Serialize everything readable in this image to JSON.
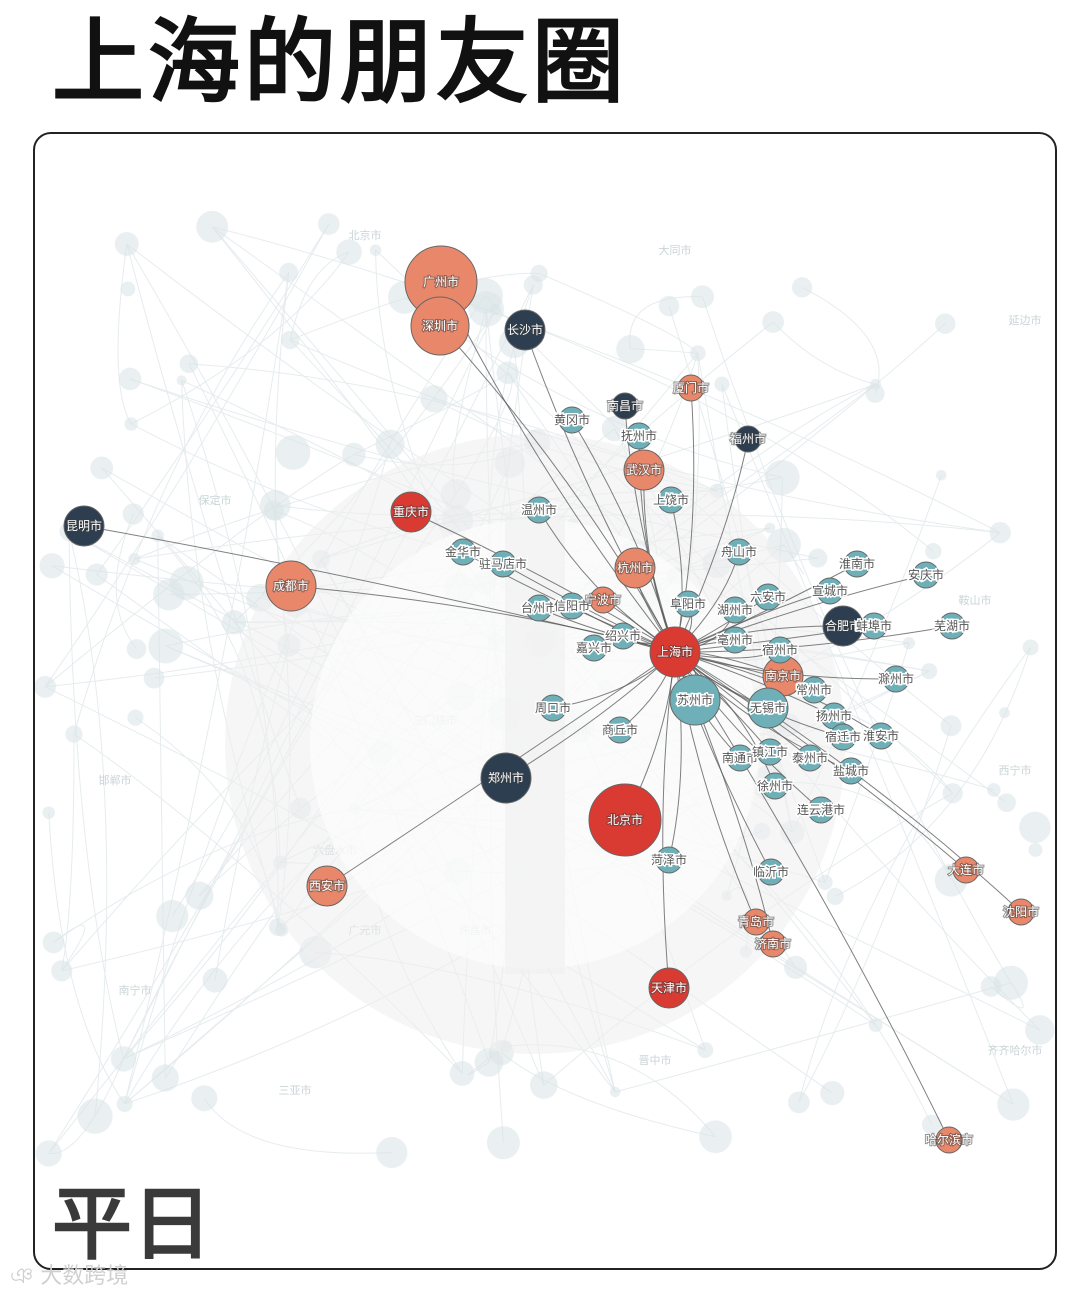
{
  "title": "上海的朋友圈",
  "corner_label": "平日",
  "watermark": "大数跨境",
  "colors": {
    "large": "#e9876a",
    "red": "#d93a32",
    "navy": "#2c3e50",
    "teal": "#6fb0b8",
    "background_node": "#d8e4e6",
    "edge": "#555555",
    "background_edge": "#e6ecee"
  },
  "hub": "上海市",
  "nodes": [
    {
      "name": "上海市",
      "type": "red",
      "size": 3
    },
    {
      "name": "北京市",
      "type": "red",
      "size": 5
    },
    {
      "name": "广州市",
      "type": "large",
      "size": 5
    },
    {
      "name": "深圳市",
      "type": "large",
      "size": 4
    },
    {
      "name": "长沙市",
      "type": "navy",
      "size": 2
    },
    {
      "name": "厦门市",
      "type": "large",
      "size": 1
    },
    {
      "name": "南昌市",
      "type": "navy",
      "size": 1
    },
    {
      "name": "黄冈市",
      "type": "teal",
      "size": 1
    },
    {
      "name": "抚州市",
      "type": "teal",
      "size": 1
    },
    {
      "name": "福州市",
      "type": "navy",
      "size": 1
    },
    {
      "name": "武汉市",
      "type": "large",
      "size": 2
    },
    {
      "name": "上饶市",
      "type": "teal",
      "size": 1
    },
    {
      "name": "昆明市",
      "type": "navy",
      "size": 2
    },
    {
      "name": "重庆市",
      "type": "red",
      "size": 2
    },
    {
      "name": "温州市",
      "type": "teal",
      "size": 1
    },
    {
      "name": "成都市",
      "type": "large",
      "size": 3
    },
    {
      "name": "金华市",
      "type": "teal",
      "size": 1
    },
    {
      "name": "驻马店市",
      "type": "teal",
      "size": 1
    },
    {
      "name": "杭州市",
      "type": "large",
      "size": 2
    },
    {
      "name": "舟山市",
      "type": "teal",
      "size": 1
    },
    {
      "name": "淮南市",
      "type": "teal",
      "size": 1
    },
    {
      "name": "安庆市",
      "type": "teal",
      "size": 1
    },
    {
      "name": "台州市",
      "type": "teal",
      "size": 1
    },
    {
      "name": "信阳市",
      "type": "teal",
      "size": 1
    },
    {
      "name": "宁波市",
      "type": "large",
      "size": 1
    },
    {
      "name": "阜阳市",
      "type": "teal",
      "size": 1
    },
    {
      "name": "六安市",
      "type": "teal",
      "size": 1
    },
    {
      "name": "宣城市",
      "type": "teal",
      "size": 1
    },
    {
      "name": "绍兴市",
      "type": "teal",
      "size": 1
    },
    {
      "name": "湖州市",
      "type": "teal",
      "size": 1
    },
    {
      "name": "合肥市",
      "type": "navy",
      "size": 2
    },
    {
      "name": "蚌埠市",
      "type": "teal",
      "size": 1
    },
    {
      "name": "芜湖市",
      "type": "teal",
      "size": 1
    },
    {
      "name": "嘉兴市",
      "type": "teal",
      "size": 1
    },
    {
      "name": "亳州市",
      "type": "teal",
      "size": 1
    },
    {
      "name": "宿州市",
      "type": "teal",
      "size": 1
    },
    {
      "name": "南京市",
      "type": "large",
      "size": 2
    },
    {
      "name": "常州市",
      "type": "teal",
      "size": 1
    },
    {
      "name": "滁州市",
      "type": "teal",
      "size": 1
    },
    {
      "name": "苏州市",
      "type": "teal",
      "size": 3
    },
    {
      "name": "无锡市",
      "type": "teal",
      "size": 2
    },
    {
      "name": "周口市",
      "type": "teal",
      "size": 1
    },
    {
      "name": "扬州市",
      "type": "teal",
      "size": 1
    },
    {
      "name": "商丘市",
      "type": "teal",
      "size": 1
    },
    {
      "name": "宿迁市",
      "type": "teal",
      "size": 1
    },
    {
      "name": "淮安市",
      "type": "teal",
      "size": 1
    },
    {
      "name": "南通市",
      "type": "teal",
      "size": 1
    },
    {
      "name": "镇江市",
      "type": "teal",
      "size": 1
    },
    {
      "name": "泰州市",
      "type": "teal",
      "size": 1
    },
    {
      "name": "郑州市",
      "type": "navy",
      "size": 3
    },
    {
      "name": "盐城市",
      "type": "teal",
      "size": 1
    },
    {
      "name": "徐州市",
      "type": "teal",
      "size": 1
    },
    {
      "name": "连云港市",
      "type": "teal",
      "size": 1
    },
    {
      "name": "菏泽市",
      "type": "teal",
      "size": 1
    },
    {
      "name": "临沂市",
      "type": "teal",
      "size": 1
    },
    {
      "name": "大连市",
      "type": "large",
      "size": 1
    },
    {
      "name": "西安市",
      "type": "large",
      "size": 2
    },
    {
      "name": "沈阳市",
      "type": "large",
      "size": 1
    },
    {
      "name": "青岛市",
      "type": "large",
      "size": 1
    },
    {
      "name": "济南市",
      "type": "large",
      "size": 1
    },
    {
      "name": "天津市",
      "type": "red",
      "size": 2
    },
    {
      "name": "哈尔滨市",
      "type": "large",
      "size": 1
    }
  ],
  "background_labels": [
    "北京市",
    "大同市",
    "保定市",
    "鞍山市",
    "邯郸市",
    "六盘水市",
    "南宁市",
    "广元市",
    "三门峡市",
    "许昌市",
    "安阳市",
    "晋中市",
    "三亚市",
    "西宁市",
    "延边市",
    "齐齐哈尔市"
  ]
}
